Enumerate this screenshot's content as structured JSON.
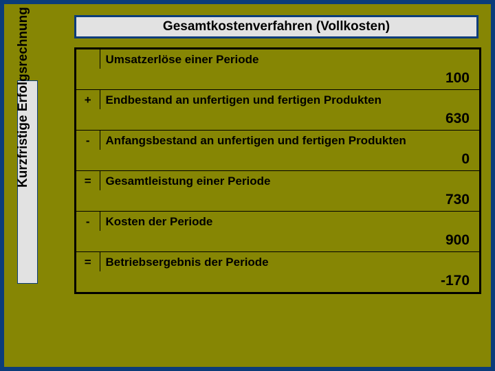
{
  "title": "Gesamtkostenverfahren (Vollkosten)",
  "sidebar_label": "Kurzfristige Erfolgsrechnung",
  "rows": {
    "r0": {
      "desc": "Umsatzerlöse einer Periode",
      "value": "100"
    },
    "r1": {
      "op": "+",
      "desc": "Endbestand an unfertigen und fertigen Produkten",
      "value": "630"
    },
    "r2": {
      "op": "-",
      "desc": "Anfangsbestand an unfertigen und fertigen Produkten",
      "value": "0"
    },
    "r3": {
      "op": "=",
      "desc": "Gesamtleistung einer Periode",
      "value": "730"
    },
    "r4": {
      "op": "-",
      "desc": "Kosten der Periode",
      "value": "900"
    },
    "r5": {
      "op": "=",
      "desc": "Betriebsergebnis der Periode",
      "value": "-170"
    }
  }
}
